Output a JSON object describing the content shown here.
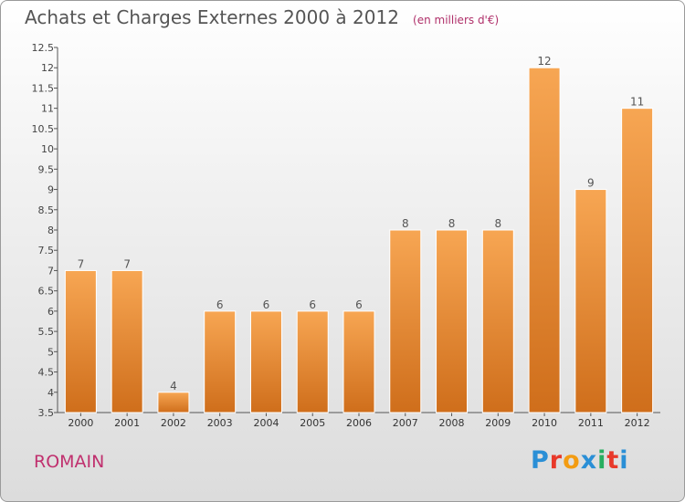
{
  "chart_data": {
    "type": "bar",
    "title": "Achats et Charges Externes 2000 à 2012",
    "subtitle": "(en milliers d'€)",
    "categories": [
      "2000",
      "2001",
      "2002",
      "2003",
      "2004",
      "2005",
      "2006",
      "2007",
      "2008",
      "2009",
      "2010",
      "2011",
      "2012"
    ],
    "values": [
      7,
      7,
      4,
      6,
      6,
      6,
      6,
      8,
      8,
      8,
      12,
      9,
      11
    ],
    "value_labels": [
      "7",
      "7",
      "4",
      "6",
      "6",
      "6",
      "6",
      "8",
      "8",
      "8",
      "12",
      "9",
      "11"
    ],
    "ylim": [
      3.5,
      12.5
    ],
    "yticks": [
      "3.5",
      "4",
      "4.5",
      "5",
      "5.5",
      "6",
      "6.5",
      "7",
      "7.5",
      "8",
      "8.5",
      "9",
      "9.5",
      "10",
      "10.5",
      "11",
      "11.5",
      "12",
      "12.5"
    ],
    "grid": false,
    "bar_color": "#f0923a"
  },
  "footer": {
    "location": "ROMAIN",
    "brand": "Proxiti"
  }
}
